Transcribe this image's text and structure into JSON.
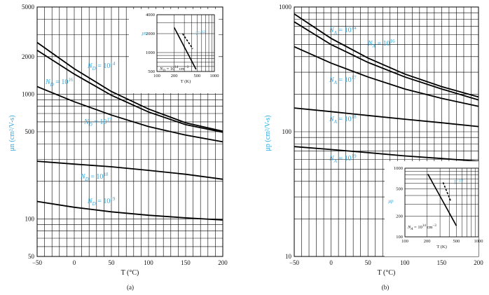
{
  "chart_data": [
    {
      "type": "line",
      "panel_label": "(a)",
      "xlabel": "T (°C)",
      "ylabel": "μn (cm²/V-s)",
      "xlim": [
        -50,
        200
      ],
      "ylim": [
        50,
        5000
      ],
      "yscale": "log",
      "x_ticks": [
        "−50",
        "0",
        "50",
        "100",
        "150",
        "200"
      ],
      "y_ticks": [
        "5000",
        "2000",
        "1000",
        "500",
        "100",
        "50"
      ],
      "grid": true,
      "series": [
        {
          "name": "N_D = 10^14",
          "label_base": "N",
          "label_sub": "D",
          "label_exp": "14",
          "x": [
            -50,
            0,
            50,
            100,
            150,
            200
          ],
          "y": [
            2600,
            1600,
            1050,
            760,
            590,
            505
          ]
        },
        {
          "name": "N_D = 10^16",
          "label_base": "N",
          "label_sub": "D",
          "label_exp": "16",
          "x": [
            -50,
            0,
            50,
            100,
            150,
            200
          ],
          "y": [
            2250,
            1450,
            980,
            720,
            570,
            495
          ]
        },
        {
          "name": "N_D = 10^17",
          "label_base": "N",
          "label_sub": "D",
          "label_exp": "17",
          "x": [
            -50,
            0,
            50,
            100,
            150,
            200
          ],
          "y": [
            1150,
            870,
            680,
            550,
            470,
            415
          ]
        },
        {
          "name": "N_D = 10^18",
          "label_base": "N",
          "label_sub": "D",
          "label_exp": "18",
          "x": [
            -50,
            0,
            50,
            100,
            150,
            200
          ],
          "y": [
            290,
            275,
            262,
            245,
            228,
            208
          ]
        },
        {
          "name": "N_D = 10^19",
          "label_base": "N",
          "label_sub": "D",
          "label_exp": "19",
          "x": [
            -50,
            0,
            50,
            100,
            150,
            200
          ],
          "y": [
            138,
            124,
            114,
            107,
            102,
            98
          ]
        }
      ],
      "inset": {
        "xlabel": "T (K)",
        "ylabel": "μn",
        "xscale": "log",
        "yscale": "log",
        "xlim": [
          100,
          1000
        ],
        "ylim": [
          500,
          4000
        ],
        "x_ticks": [
          "100",
          "200",
          "500",
          "1000"
        ],
        "y_ticks": [
          "4000",
          "2000",
          "1000",
          "500"
        ],
        "annotation_base": "T",
        "annotation_exp": "−3/2",
        "doping_label": "N",
        "doping_sub": "D",
        "doping_eq": "= 10",
        "doping_exp": "14",
        "doping_unit": "cm",
        "doping_unit_exp": "−3",
        "series_solid": {
          "x": [
            200,
            480
          ],
          "y": [
            2500,
            540
          ]
        },
        "series_dashed": {
          "x": [
            280,
            420
          ],
          "y": [
            2000,
            1150
          ]
        }
      }
    },
    {
      "type": "line",
      "panel_label": "(b)",
      "xlabel": "T (°C)",
      "ylabel": "μp (cm²/V-s)",
      "xlim": [
        -50,
        200
      ],
      "ylim": [
        10,
        1000
      ],
      "yscale": "log",
      "x_ticks": [
        "−50",
        "0",
        "50",
        "100",
        "150",
        "200"
      ],
      "y_ticks": [
        "1000",
        "100",
        "10"
      ],
      "grid": true,
      "series": [
        {
          "name": "N_A = 10^14",
          "label_base": "N",
          "label_sub": "A",
          "label_exp": "14",
          "x": [
            -50,
            0,
            50,
            100,
            150,
            200
          ],
          "y": [
            880,
            560,
            390,
            290,
            230,
            190
          ]
        },
        {
          "name": "N_A = 10^16",
          "label_base": "N",
          "label_sub": "A",
          "label_exp": "16",
          "x": [
            -50,
            0,
            50,
            100,
            150,
            200
          ],
          "y": [
            760,
            500,
            360,
            275,
            220,
            180
          ]
        },
        {
          "name": "N_A = 10^17",
          "label_base": "N",
          "label_sub": "A",
          "label_exp": "17",
          "x": [
            -50,
            0,
            50,
            100,
            150,
            200
          ],
          "y": [
            480,
            355,
            275,
            220,
            185,
            160
          ]
        },
        {
          "name": "N_A = 10^18",
          "label_base": "N",
          "label_sub": "A",
          "label_exp": "18",
          "x": [
            -50,
            0,
            50,
            100,
            150,
            200
          ],
          "y": [
            155,
            145,
            135,
            126,
            118,
            110
          ]
        },
        {
          "name": "N_A = 10^19",
          "label_base": "N",
          "label_sub": "A",
          "label_exp": "19",
          "x": [
            -50,
            0,
            50,
            100,
            150,
            200
          ],
          "y": [
            76,
            72,
            68,
            64,
            61,
            58
          ]
        }
      ],
      "inset": {
        "xlabel": "T (K)",
        "ylabel": "μp",
        "xscale": "log",
        "yscale": "log",
        "xlim": [
          100,
          1000
        ],
        "ylim": [
          100,
          1000
        ],
        "x_ticks": [
          "100",
          "200",
          "500",
          "1000"
        ],
        "y_ticks": [
          "1000",
          "500",
          "200",
          "100"
        ],
        "annotation_base": "T",
        "annotation_exp": "−3/2",
        "doping_label": "N",
        "doping_sub": "A",
        "doping_eq": "= 10",
        "doping_exp": "14",
        "doping_unit": "cm",
        "doping_unit_exp": "−3",
        "series_solid": {
          "x": [
            205,
            500
          ],
          "y": [
            820,
            145
          ]
        },
        "series_dashed": {
          "x": [
            330,
            420
          ],
          "y": [
            620,
            330
          ]
        }
      }
    }
  ]
}
